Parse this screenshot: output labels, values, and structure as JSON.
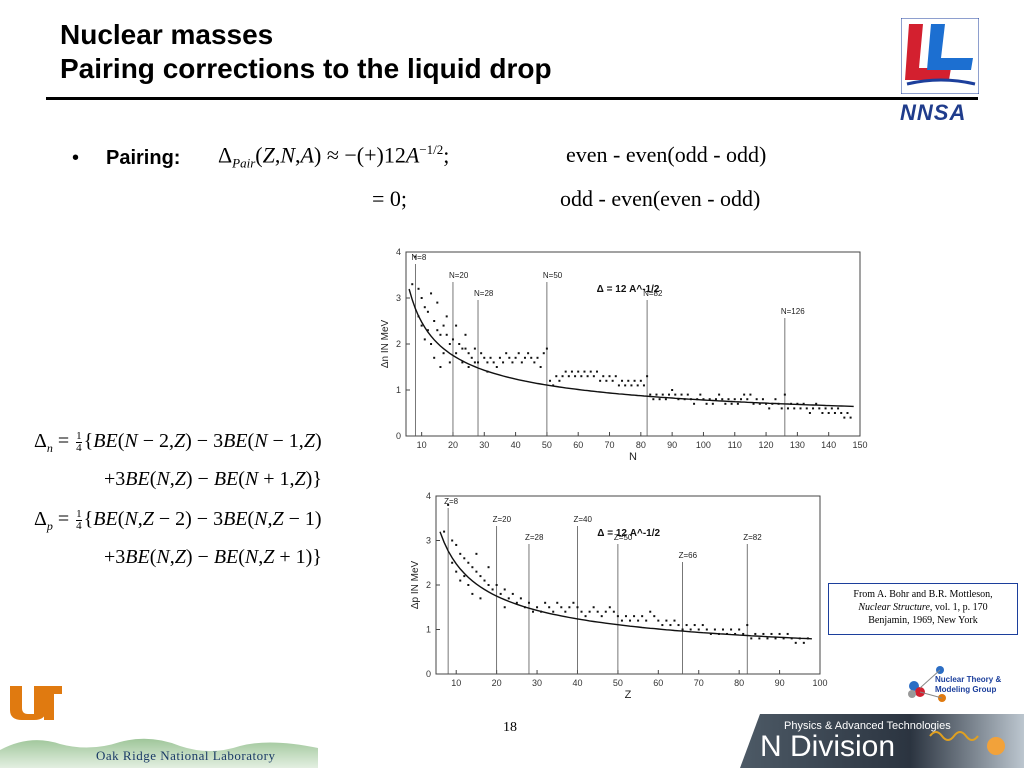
{
  "header": {
    "title_line1": "Nuclear masses",
    "title_line2": "Pairing corrections to the liquid drop"
  },
  "logos": {
    "nnsa": "NNSA",
    "ut": "UT",
    "ornl": "Oak Ridge National Laboratory",
    "ntmg_line1": "Nuclear Theory &",
    "ntmg_line2": "Modeling Group",
    "ndiv_top": "Physics & Advanced Technologies",
    "ndiv_main": "N Division"
  },
  "bullet": {
    "label": "Pairing:",
    "eq1_case": "even - even(odd - odd)",
    "eq2_case": "odd  - even(even - odd)"
  },
  "source": {
    "line1": "From A. Bohr and B.R. Mottleson,",
    "line2_italic": "Nuclear Structure",
    "line2_rest": ", vol. 1, p. 170",
    "line3": "Benjamin, 1969, New York"
  },
  "page_number": "18",
  "colors": {
    "accent_blue": "#1c3f9c",
    "red": "#d3202f"
  },
  "chart_data": [
    {
      "type": "scatter",
      "title": "",
      "xlabel": "N",
      "ylabel": "Δn IN MeV",
      "xlim": [
        5,
        150
      ],
      "ylim": [
        0,
        4
      ],
      "xticks": [
        10,
        20,
        30,
        40,
        50,
        60,
        70,
        80,
        90,
        100,
        110,
        120,
        130,
        140,
        150
      ],
      "yticks": [
        0,
        1,
        2,
        3,
        4
      ],
      "curve_label": "Δ = 12 A^-1/2",
      "magic_lines": [
        {
          "x": 8,
          "label": "N=8"
        },
        {
          "x": 20,
          "label": "N=20"
        },
        {
          "x": 28,
          "label": "N=28"
        },
        {
          "x": 50,
          "label": "N=50"
        },
        {
          "x": 82,
          "label": "N=82"
        },
        {
          "x": 126,
          "label": "N=126"
        }
      ],
      "points": [
        [
          7,
          3.3
        ],
        [
          8,
          3.9
        ],
        [
          9,
          3.2
        ],
        [
          9,
          2.6
        ],
        [
          10,
          3.0
        ],
        [
          10,
          2.4
        ],
        [
          11,
          2.8
        ],
        [
          11,
          2.1
        ],
        [
          12,
          2.7
        ],
        [
          12,
          2.3
        ],
        [
          13,
          3.1
        ],
        [
          13,
          2.0
        ],
        [
          14,
          2.5
        ],
        [
          14,
          1.7
        ],
        [
          15,
          2.3
        ],
        [
          15,
          2.9
        ],
        [
          16,
          2.2
        ],
        [
          16,
          1.5
        ],
        [
          17,
          2.4
        ],
        [
          17,
          1.8
        ],
        [
          18,
          2.2
        ],
        [
          18,
          2.6
        ],
        [
          19,
          2.0
        ],
        [
          19,
          1.6
        ],
        [
          20,
          2.1
        ],
        [
          21,
          2.4
        ],
        [
          21,
          1.8
        ],
        [
          22,
          2.0
        ],
        [
          23,
          1.9
        ],
        [
          23,
          1.6
        ],
        [
          24,
          1.9
        ],
        [
          24,
          2.2
        ],
        [
          25,
          1.8
        ],
        [
          25,
          1.5
        ],
        [
          26,
          1.7
        ],
        [
          27,
          1.6
        ],
        [
          27,
          1.9
        ],
        [
          28,
          1.6
        ],
        [
          29,
          1.8
        ],
        [
          30,
          1.7
        ],
        [
          31,
          1.6
        ],
        [
          31,
          1.4
        ],
        [
          32,
          1.7
        ],
        [
          33,
          1.6
        ],
        [
          34,
          1.5
        ],
        [
          35,
          1.7
        ],
        [
          36,
          1.6
        ],
        [
          37,
          1.8
        ],
        [
          38,
          1.7
        ],
        [
          39,
          1.6
        ],
        [
          40,
          1.7
        ],
        [
          41,
          1.8
        ],
        [
          42,
          1.6
        ],
        [
          43,
          1.7
        ],
        [
          44,
          1.8
        ],
        [
          45,
          1.7
        ],
        [
          46,
          1.6
        ],
        [
          47,
          1.7
        ],
        [
          48,
          1.5
        ],
        [
          49,
          1.8
        ],
        [
          50,
          1.9
        ],
        [
          51,
          1.2
        ],
        [
          52,
          1.1
        ],
        [
          53,
          1.3
        ],
        [
          54,
          1.2
        ],
        [
          55,
          1.3
        ],
        [
          56,
          1.4
        ],
        [
          57,
          1.3
        ],
        [
          58,
          1.4
        ],
        [
          59,
          1.3
        ],
        [
          60,
          1.4
        ],
        [
          61,
          1.3
        ],
        [
          62,
          1.4
        ],
        [
          63,
          1.3
        ],
        [
          64,
          1.4
        ],
        [
          65,
          1.3
        ],
        [
          66,
          1.4
        ],
        [
          67,
          1.2
        ],
        [
          68,
          1.3
        ],
        [
          69,
          1.2
        ],
        [
          70,
          1.3
        ],
        [
          71,
          1.2
        ],
        [
          72,
          1.3
        ],
        [
          73,
          1.1
        ],
        [
          74,
          1.2
        ],
        [
          75,
          1.1
        ],
        [
          76,
          1.2
        ],
        [
          77,
          1.1
        ],
        [
          78,
          1.2
        ],
        [
          79,
          1.1
        ],
        [
          80,
          1.2
        ],
        [
          81,
          1.1
        ],
        [
          82,
          1.3
        ],
        [
          83,
          0.9
        ],
        [
          84,
          0.8
        ],
        [
          85,
          0.9
        ],
        [
          86,
          0.8
        ],
        [
          87,
          0.9
        ],
        [
          88,
          0.8
        ],
        [
          89,
          0.9
        ],
        [
          90,
          1.0
        ],
        [
          91,
          0.9
        ],
        [
          92,
          0.8
        ],
        [
          93,
          0.9
        ],
        [
          94,
          0.8
        ],
        [
          95,
          0.9
        ],
        [
          96,
          0.8
        ],
        [
          97,
          0.7
        ],
        [
          98,
          0.8
        ],
        [
          99,
          0.9
        ],
        [
          100,
          0.8
        ],
        [
          101,
          0.7
        ],
        [
          102,
          0.8
        ],
        [
          103,
          0.7
        ],
        [
          104,
          0.8
        ],
        [
          105,
          0.9
        ],
        [
          106,
          0.8
        ],
        [
          107,
          0.7
        ],
        [
          108,
          0.8
        ],
        [
          109,
          0.7
        ],
        [
          110,
          0.8
        ],
        [
          111,
          0.7
        ],
        [
          112,
          0.8
        ],
        [
          113,
          0.9
        ],
        [
          114,
          0.8
        ],
        [
          115,
          0.9
        ],
        [
          116,
          0.7
        ],
        [
          117,
          0.8
        ],
        [
          118,
          0.7
        ],
        [
          119,
          0.8
        ],
        [
          120,
          0.7
        ],
        [
          121,
          0.6
        ],
        [
          122,
          0.7
        ],
        [
          123,
          0.8
        ],
        [
          124,
          0.7
        ],
        [
          125,
          0.6
        ],
        [
          126,
          0.9
        ],
        [
          127,
          0.6
        ],
        [
          128,
          0.7
        ],
        [
          129,
          0.6
        ],
        [
          130,
          0.7
        ],
        [
          131,
          0.6
        ],
        [
          132,
          0.7
        ],
        [
          133,
          0.6
        ],
        [
          134,
          0.5
        ],
        [
          135,
          0.6
        ],
        [
          136,
          0.7
        ],
        [
          137,
          0.6
        ],
        [
          138,
          0.5
        ],
        [
          139,
          0.6
        ],
        [
          140,
          0.5
        ],
        [
          141,
          0.6
        ],
        [
          142,
          0.5
        ],
        [
          143,
          0.6
        ],
        [
          144,
          0.5
        ],
        [
          145,
          0.4
        ],
        [
          146,
          0.5
        ],
        [
          147,
          0.4
        ]
      ]
    },
    {
      "type": "scatter",
      "title": "",
      "xlabel": "Z",
      "ylabel": "Δp IN MeV",
      "xlim": [
        5,
        100
      ],
      "ylim": [
        0,
        4
      ],
      "xticks": [
        10,
        20,
        30,
        40,
        50,
        60,
        70,
        80,
        90,
        100
      ],
      "yticks": [
        0,
        1,
        2,
        3,
        4
      ],
      "curve_label": "Δ = 12 A^-1/2",
      "magic_lines": [
        {
          "x": 8,
          "label": "Z=8"
        },
        {
          "x": 20,
          "label": "Z=20"
        },
        {
          "x": 28,
          "label": "Z=28"
        },
        {
          "x": 40,
          "label": "Z=40"
        },
        {
          "x": 50,
          "label": "Z=50"
        },
        {
          "x": 66,
          "label": "Z=66"
        },
        {
          "x": 82,
          "label": "Z=82"
        }
      ],
      "points": [
        [
          7,
          3.2
        ],
        [
          8,
          3.8
        ],
        [
          9,
          3.0
        ],
        [
          9,
          2.5
        ],
        [
          10,
          2.9
        ],
        [
          10,
          2.3
        ],
        [
          11,
          2.7
        ],
        [
          11,
          2.1
        ],
        [
          12,
          2.6
        ],
        [
          12,
          2.2
        ],
        [
          13,
          2.5
        ],
        [
          13,
          2.0
        ],
        [
          14,
          2.4
        ],
        [
          14,
          1.8
        ],
        [
          15,
          2.3
        ],
        [
          15,
          2.7
        ],
        [
          16,
          2.2
        ],
        [
          16,
          1.7
        ],
        [
          17,
          2.1
        ],
        [
          18,
          2.0
        ],
        [
          18,
          2.4
        ],
        [
          19,
          1.9
        ],
        [
          20,
          2.0
        ],
        [
          21,
          1.8
        ],
        [
          22,
          1.9
        ],
        [
          22,
          1.5
        ],
        [
          23,
          1.7
        ],
        [
          24,
          1.8
        ],
        [
          25,
          1.6
        ],
        [
          26,
          1.7
        ],
        [
          27,
          1.5
        ],
        [
          28,
          1.6
        ],
        [
          29,
          1.4
        ],
        [
          30,
          1.5
        ],
        [
          31,
          1.4
        ],
        [
          32,
          1.6
        ],
        [
          33,
          1.5
        ],
        [
          34,
          1.4
        ],
        [
          35,
          1.6
        ],
        [
          36,
          1.5
        ],
        [
          37,
          1.4
        ],
        [
          38,
          1.5
        ],
        [
          39,
          1.6
        ],
        [
          40,
          1.5
        ],
        [
          41,
          1.4
        ],
        [
          42,
          1.3
        ],
        [
          43,
          1.4
        ],
        [
          44,
          1.5
        ],
        [
          45,
          1.4
        ],
        [
          46,
          1.3
        ],
        [
          47,
          1.4
        ],
        [
          48,
          1.5
        ],
        [
          49,
          1.4
        ],
        [
          50,
          1.3
        ],
        [
          51,
          1.2
        ],
        [
          52,
          1.3
        ],
        [
          53,
          1.2
        ],
        [
          54,
          1.3
        ],
        [
          55,
          1.2
        ],
        [
          56,
          1.3
        ],
        [
          57,
          1.2
        ],
        [
          58,
          1.4
        ],
        [
          59,
          1.3
        ],
        [
          60,
          1.2
        ],
        [
          61,
          1.1
        ],
        [
          62,
          1.2
        ],
        [
          63,
          1.1
        ],
        [
          64,
          1.2
        ],
        [
          65,
          1.1
        ],
        [
          66,
          1.0
        ],
        [
          67,
          1.1
        ],
        [
          68,
          1.0
        ],
        [
          69,
          1.1
        ],
        [
          70,
          1.0
        ],
        [
          71,
          1.1
        ],
        [
          72,
          1.0
        ],
        [
          73,
          0.9
        ],
        [
          74,
          1.0
        ],
        [
          75,
          0.9
        ],
        [
          76,
          1.0
        ],
        [
          77,
          0.9
        ],
        [
          78,
          1.0
        ],
        [
          79,
          0.9
        ],
        [
          80,
          1.0
        ],
        [
          81,
          0.9
        ],
        [
          82,
          1.1
        ],
        [
          83,
          0.8
        ],
        [
          84,
          0.9
        ],
        [
          85,
          0.8
        ],
        [
          86,
          0.9
        ],
        [
          87,
          0.8
        ],
        [
          88,
          0.9
        ],
        [
          89,
          0.8
        ],
        [
          90,
          0.9
        ],
        [
          91,
          0.8
        ],
        [
          92,
          0.9
        ],
        [
          93,
          0.8
        ],
        [
          94,
          0.7
        ],
        [
          95,
          0.8
        ],
        [
          96,
          0.7
        ],
        [
          97,
          0.8
        ]
      ]
    }
  ]
}
